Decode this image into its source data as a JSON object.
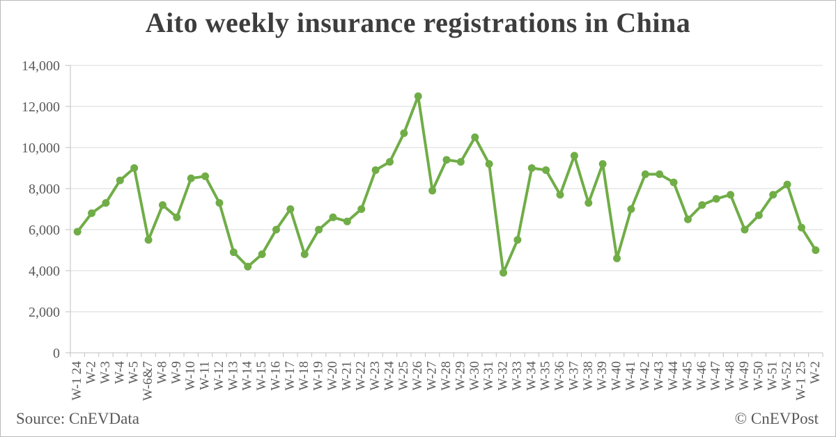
{
  "chart_data": {
    "type": "line",
    "title": "Aito weekly insurance registrations in China",
    "series_name": "Aito weekly insurance registrations",
    "categories": [
      "W-1 24",
      "W-2",
      "W-3",
      "W-4",
      "W-5",
      "W-6&7",
      "W-8",
      "W-9",
      "W-10",
      "W-11",
      "W-12",
      "W-13",
      "W-14",
      "W-15",
      "W-16",
      "W-17",
      "W-18",
      "W-19",
      "W-20",
      "W-21",
      "W-22",
      "W-23",
      "W-24",
      "W-25",
      "W-26",
      "W-27",
      "W-28",
      "W-29",
      "W-30",
      "W-31",
      "W-32",
      "W-33",
      "W-34",
      "W-35",
      "W-36",
      "W-37",
      "W-38",
      "W-39",
      "W-40",
      "W-41",
      "W-42",
      "W-43",
      "W-44",
      "W-45",
      "W-46",
      "W-47",
      "W-48",
      "W-49",
      "W-50",
      "W-51",
      "W-52",
      "W-1 25",
      "W-2"
    ],
    "values": [
      5900,
      6800,
      7300,
      8400,
      9000,
      5500,
      7200,
      6600,
      8500,
      8600,
      7300,
      4900,
      4200,
      4800,
      6000,
      7000,
      4800,
      6000,
      6600,
      6400,
      7000,
      8900,
      9300,
      10700,
      12500,
      7900,
      9400,
      9300,
      10500,
      9200,
      3900,
      5500,
      9000,
      8900,
      7700,
      9600,
      7300,
      9200,
      4600,
      7000,
      8700,
      8700,
      8300,
      6500,
      7200,
      7500,
      7700,
      6000,
      6700,
      7700,
      8200,
      6100,
      5000
    ],
    "ylim": [
      0,
      14000
    ],
    "ytick_step": 2000,
    "ytick_labels": [
      "0",
      "2,000",
      "4,000",
      "6,000",
      "8,000",
      "10,000",
      "12,000",
      "14,000"
    ],
    "xlabel": "",
    "ylabel": "",
    "grid": "horizontal",
    "legend": "none",
    "marker": "circle",
    "line_color": "#70AD47",
    "grid_color": "#d9d9d9",
    "axis_color": "#bfbfbf",
    "tick_label_color": "#595959",
    "title_color": "#3d3d3d"
  },
  "footer": {
    "source": "Source: CnEVData",
    "copyright": "© CnEVPost"
  }
}
